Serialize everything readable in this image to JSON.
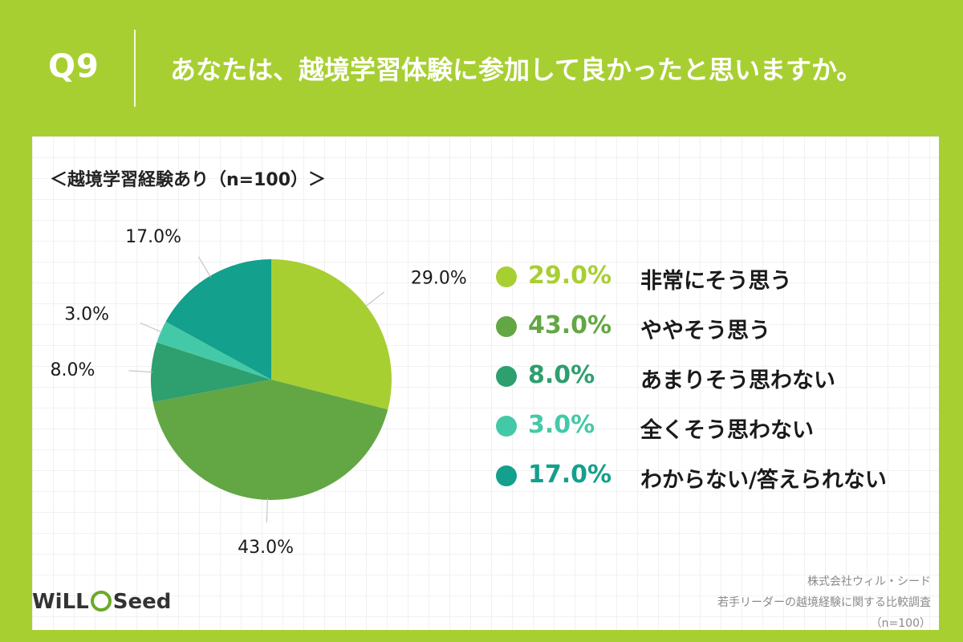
{
  "question": {
    "number": "Q9",
    "title": "あなたは、越境学習体験に参加して良かったと思いますか。"
  },
  "subtitle": "＜越境学習経験あり（n=100）＞",
  "chart_data": {
    "type": "pie",
    "unit": "%",
    "slices": [
      {
        "label": "非常にそう思う",
        "value": 29.0,
        "display": "29.0%",
        "color": "#a8cf32"
      },
      {
        "label": "ややそう思う",
        "value": 43.0,
        "display": "43.0%",
        "color": "#62a744"
      },
      {
        "label": "あまりそう思わない",
        "value": 8.0,
        "display": "8.0%",
        "color": "#2e9f6e"
      },
      {
        "label": "全くそう思わない",
        "value": 3.0,
        "display": "3.0%",
        "color": "#44c9a8"
      },
      {
        "label": "わからない/答えられない",
        "value": 17.0,
        "display": "17.0%",
        "color": "#13a08c"
      }
    ],
    "start_angle": "12 o'clock",
    "direction": "clockwise",
    "legend_position": "right"
  },
  "logo": {
    "prefix": "WiLL",
    "suffix": "Seed"
  },
  "credit": {
    "company": "株式会社ウィル・シード",
    "survey": "若手リーダーの越境経験に関する比較調査",
    "sample": "（n=100）"
  }
}
